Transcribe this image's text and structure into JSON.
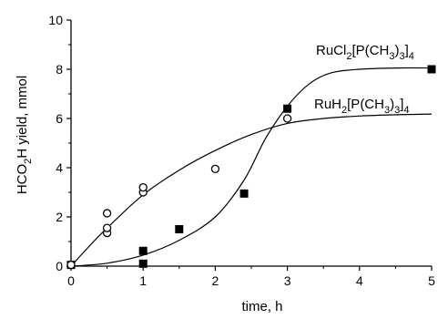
{
  "chart_data": {
    "type": "scatter",
    "title": "",
    "xlabel": "time, h",
    "ylabel": {
      "parts": [
        "HCO",
        "2",
        "H yield, mmol"
      ]
    },
    "xlim": [
      0,
      5
    ],
    "ylim": [
      0,
      10
    ],
    "x_ticks": [
      "0",
      "1",
      "2",
      "3",
      "4",
      "5"
    ],
    "y_ticks": [
      "0",
      "2",
      "4",
      "6",
      "8",
      "10"
    ],
    "x_tick_values": [
      0,
      1,
      2,
      3,
      4,
      5
    ],
    "y_tick_values": [
      0,
      2,
      4,
      6,
      8,
      10
    ],
    "grid": false,
    "series": [
      {
        "name": "RuCl2[P(CH3)3]4",
        "label_parts": [
          "RuCl",
          "2",
          "[P(CH",
          "3",
          ")",
          "3",
          "]",
          "4"
        ],
        "marker": "filled-square",
        "color": "#000000",
        "points": [
          {
            "x": 0,
            "y": 0.05
          },
          {
            "x": 1,
            "y": 0.1
          },
          {
            "x": 1,
            "y": 0.62
          },
          {
            "x": 1.5,
            "y": 1.5
          },
          {
            "x": 2.4,
            "y": 2.95
          },
          {
            "x": 3,
            "y": 6.4
          },
          {
            "x": 5,
            "y": 8.0
          }
        ],
        "fit_curve": [
          {
            "x": 0,
            "y": 0.0
          },
          {
            "x": 0.5,
            "y": 0.12
          },
          {
            "x": 1,
            "y": 0.45
          },
          {
            "x": 1.5,
            "y": 1.05
          },
          {
            "x": 2,
            "y": 2.0
          },
          {
            "x": 2.4,
            "y": 3.5
          },
          {
            "x": 2.7,
            "y": 5.2
          },
          {
            "x": 3,
            "y": 6.5
          },
          {
            "x": 3.3,
            "y": 7.4
          },
          {
            "x": 3.6,
            "y": 7.85
          },
          {
            "x": 4,
            "y": 8.0
          },
          {
            "x": 4.5,
            "y": 8.05
          },
          {
            "x": 5,
            "y": 8.05
          }
        ]
      },
      {
        "name": "RuH2[P(CH3)3]4",
        "label_parts": [
          "RuH",
          "2",
          "[P(CH",
          "3",
          ")",
          "3",
          "]",
          "4"
        ],
        "marker": "open-circle",
        "color": "#000000",
        "points": [
          {
            "x": 0,
            "y": 0.05
          },
          {
            "x": 0.5,
            "y": 1.35
          },
          {
            "x": 0.5,
            "y": 1.55
          },
          {
            "x": 0.5,
            "y": 2.15
          },
          {
            "x": 1,
            "y": 3.0
          },
          {
            "x": 1,
            "y": 3.2
          },
          {
            "x": 2,
            "y": 3.95
          },
          {
            "x": 3,
            "y": 6.0
          }
        ],
        "fit_curve": [
          {
            "x": 0,
            "y": 0.0
          },
          {
            "x": 0.25,
            "y": 0.8
          },
          {
            "x": 0.5,
            "y": 1.55
          },
          {
            "x": 1,
            "y": 2.9
          },
          {
            "x": 1.5,
            "y": 3.9
          },
          {
            "x": 2,
            "y": 4.7
          },
          {
            "x": 2.5,
            "y": 5.35
          },
          {
            "x": 3,
            "y": 5.8
          },
          {
            "x": 3.5,
            "y": 6.0
          },
          {
            "x": 4,
            "y": 6.1
          },
          {
            "x": 4.5,
            "y": 6.15
          },
          {
            "x": 5,
            "y": 6.18
          }
        ]
      }
    ]
  }
}
